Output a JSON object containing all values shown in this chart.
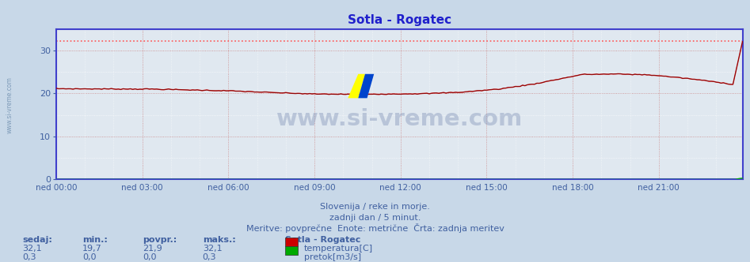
{
  "title": "Sotla - Rogatec",
  "background_color": "#c8d8e8",
  "plot_bg_color": "#e0e8f0",
  "grid_color_dotted": "#d0a0a0",
  "grid_color_solid": "#ffffff",
  "x_tick_labels": [
    "ned 00:00",
    "ned 03:00",
    "ned 06:00",
    "ned 09:00",
    "ned 12:00",
    "ned 15:00",
    "ned 18:00",
    "ned 21:00"
  ],
  "x_tick_positions": [
    0,
    36,
    72,
    108,
    144,
    180,
    216,
    252
  ],
  "total_points": 288,
  "ylim": [
    0,
    35
  ],
  "yticks": [
    0,
    10,
    20,
    30
  ],
  "title_color": "#2020cc",
  "axis_color": "#4040cc",
  "tick_color": "#4060a0",
  "text_color": "#4060a0",
  "text1": "Slovenija / reke in morje.",
  "text2": "zadnji dan / 5 minut.",
  "text3": "Meritve: povprečne  Enote: metrične  Črta: zadnja meritev",
  "footer_label1": "sedaj:",
  "footer_label2": "min.:",
  "footer_label3": "povpr.:",
  "footer_label4": "maks.:",
  "temp_sedaj": "32,1",
  "temp_min": "19,7",
  "temp_povpr": "21,9",
  "temp_maks": "32,1",
  "temp_label": "temperatura[C]",
  "pretok_sedaj": "0,3",
  "pretok_min": "0,0",
  "pretok_povpr": "0,0",
  "pretok_maks": "0,3",
  "pretok_label": "pretok[m3/s]",
  "station_label": "Sotla - Rogatec",
  "temp_color": "#cc0000",
  "temp_black_color": "#1a1a1a",
  "pretok_color": "#00aa00",
  "dashed_max_color": "#ff5555",
  "watermark_text": "www.si-vreme.com",
  "left_text": "www.si-vreme.com",
  "logo_yellow": "#ffff00",
  "logo_blue": "#0044cc"
}
